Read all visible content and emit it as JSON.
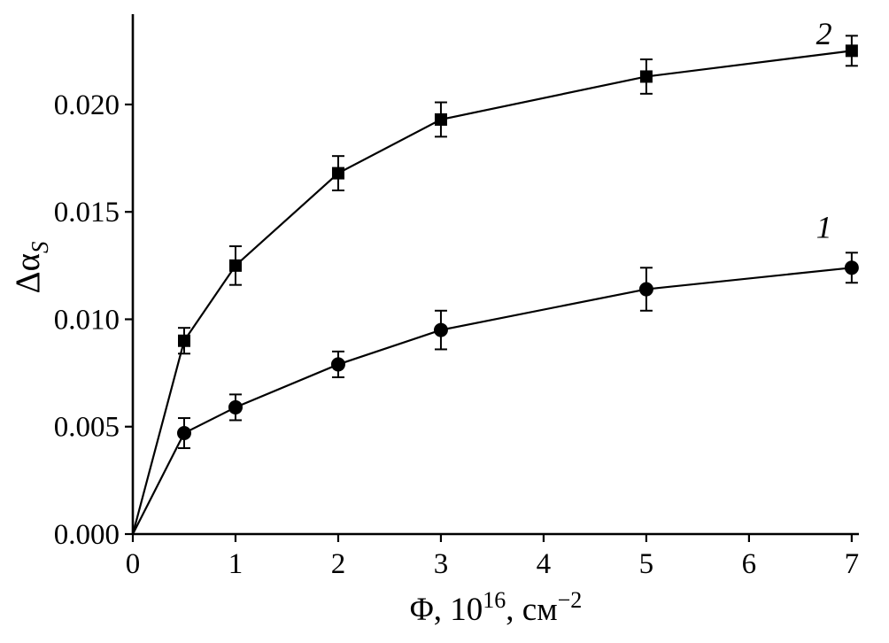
{
  "chart_data": {
    "type": "line",
    "title": "",
    "xlabel_parts": [
      {
        "t": "Φ, 10"
      },
      {
        "t": "16",
        "sup": true
      },
      {
        "t": ", см"
      },
      {
        "t": "−2",
        "sup": true
      }
    ],
    "ylabel_parts": [
      {
        "t": "Δα"
      },
      {
        "t": "S",
        "sub": true
      }
    ],
    "x": [
      0,
      0.5,
      1,
      2,
      3,
      5,
      7
    ],
    "series": [
      {
        "name": "1",
        "marker": "circle",
        "values": [
          0,
          0.0047,
          0.0059,
          0.0079,
          0.0095,
          0.0114,
          0.0124
        ],
        "errors": [
          0,
          0.0007,
          0.0006,
          0.0006,
          0.0009,
          0.001,
          0.0007
        ],
        "label": {
          "text": "1",
          "x": 6.73,
          "y": 0.0138
        }
      },
      {
        "name": "2",
        "marker": "square",
        "values": [
          0,
          0.009,
          0.0125,
          0.0168,
          0.0193,
          0.0213,
          0.0225
        ],
        "errors": [
          0,
          0.0006,
          0.0009,
          0.0008,
          0.0008,
          0.0008,
          0.0007
        ],
        "label": {
          "text": "2",
          "x": 6.73,
          "y": 0.0228
        }
      }
    ],
    "xticks": [
      0,
      1,
      2,
      3,
      4,
      5,
      6,
      7
    ],
    "yticks": [
      0.0,
      0.005,
      0.01,
      0.015,
      0.02
    ],
    "ytick_labels": [
      "0.000",
      "0.005",
      "0.010",
      "0.015",
      "0.020"
    ],
    "xlim": [
      0,
      7.07
    ],
    "ylim": [
      0,
      0.02404
    ],
    "grid": false,
    "legend_position": "none",
    "color": "#000000",
    "background": "#ffffff"
  }
}
